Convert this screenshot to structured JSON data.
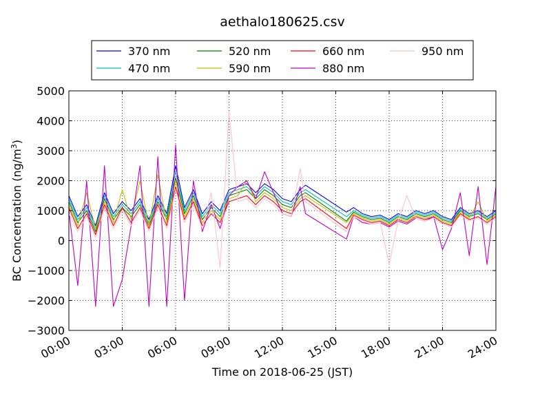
{
  "chart_data": {
    "type": "line",
    "title": "aethalo180625.csv",
    "xlabel": "Time on 2018-06-25 (JST)",
    "ylabel": "BC Concentration (ng/m³)",
    "ylabel_main": "BC Concentration (ng/m",
    "ylabel_sup": "3",
    "ylabel_end": ")",
    "xlim": [
      "00:00",
      "24:00"
    ],
    "ylim": [
      -3000,
      5000
    ],
    "x_ticks": [
      "00:00",
      "03:00",
      "06:00",
      "09:00",
      "12:00",
      "15:00",
      "18:00",
      "21:00",
      "24:00"
    ],
    "y_ticks": [
      -3000,
      -2000,
      -1000,
      0,
      1000,
      2000,
      3000,
      4000,
      5000
    ],
    "y_tick_labels": [
      "−3000",
      "−2000",
      "−1000",
      "0",
      "1000",
      "2000",
      "3000",
      "4000",
      "5000"
    ],
    "grid": true,
    "legend_position": "top",
    "x_hours": [
      0.0,
      0.5,
      1.0,
      1.5,
      2.0,
      2.5,
      3.0,
      3.5,
      4.0,
      4.5,
      5.0,
      5.5,
      6.0,
      6.5,
      7.0,
      7.5,
      8.0,
      8.5,
      9.0,
      9.5,
      10.0,
      10.5,
      11.0,
      11.5,
      12.0,
      12.5,
      13.0,
      13.3,
      15.6,
      16.0,
      16.5,
      17.0,
      17.5,
      18.0,
      18.5,
      19.0,
      19.5,
      20.0,
      20.5,
      21.0,
      21.5,
      22.0,
      22.5,
      23.0,
      23.5,
      24.0
    ],
    "series": [
      {
        "name": "370 nm",
        "color": "#0000ff",
        "values": [
          1500,
          800,
          1200,
          500,
          1600,
          900,
          1300,
          1000,
          1400,
          700,
          1500,
          900,
          2500,
          1100,
          1700,
          900,
          1300,
          1000,
          1700,
          1800,
          1900,
          1600,
          1900,
          1700,
          1400,
          1300,
          1700,
          1850,
          950,
          1100,
          900,
          800,
          850,
          700,
          900,
          800,
          1000,
          900,
          1000,
          800,
          700,
          1100,
          900,
          1000,
          800,
          1000
        ]
      },
      {
        "name": "470 nm",
        "color": "#00bfbf",
        "values": [
          1400,
          700,
          1100,
          400,
          1500,
          800,
          1200,
          900,
          1300,
          600,
          1400,
          800,
          2300,
          1000,
          1600,
          800,
          1200,
          900,
          1600,
          1700,
          1800,
          1500,
          1800,
          1600,
          1300,
          1200,
          1600,
          1700,
          800,
          1000,
          850,
          750,
          800,
          650,
          850,
          750,
          950,
          850,
          950,
          750,
          650,
          1050,
          850,
          950,
          750,
          950
        ]
      },
      {
        "name": "520 nm",
        "color": "#008000",
        "values": [
          1300,
          600,
          1000,
          300,
          1400,
          700,
          1100,
          800,
          1200,
          500,
          1300,
          700,
          2100,
          900,
          1500,
          700,
          1100,
          800,
          1500,
          1600,
          1700,
          1400,
          1700,
          1500,
          1200,
          1100,
          1500,
          1600,
          650,
          950,
          800,
          700,
          750,
          600,
          800,
          700,
          900,
          800,
          900,
          700,
          600,
          1000,
          800,
          900,
          700,
          900
        ]
      },
      {
        "name": "590 nm",
        "color": "#bfbf00",
        "values": [
          1200,
          500,
          1600,
          400,
          1300,
          600,
          1700,
          700,
          2000,
          500,
          2200,
          600,
          2000,
          800,
          1400,
          600,
          1000,
          700,
          1400,
          1500,
          2000,
          1300,
          1600,
          1400,
          1100,
          1000,
          1400,
          1500,
          600,
          900,
          750,
          650,
          700,
          550,
          750,
          650,
          850,
          750,
          850,
          650,
          550,
          950,
          750,
          1300,
          650,
          850
        ]
      },
      {
        "name": "660 nm",
        "color": "#ff0000",
        "values": [
          1100,
          400,
          900,
          200,
          1200,
          500,
          1100,
          600,
          1100,
          400,
          1200,
          500,
          1800,
          700,
          1300,
          500,
          900,
          600,
          1300,
          1400,
          1500,
          1200,
          1500,
          1300,
          1000,
          900,
          1300,
          1400,
          400,
          850,
          700,
          600,
          650,
          500,
          700,
          600,
          800,
          700,
          800,
          600,
          500,
          900,
          700,
          800,
          600,
          800
        ]
      },
      {
        "name": "880 nm",
        "color": "#bf00bf",
        "values": [
          1000,
          -1500,
          2000,
          -2200,
          2500,
          -2200,
          -1300,
          500,
          2500,
          -2200,
          2800,
          -2200,
          3200,
          -2000,
          2000,
          300,
          1200,
          400,
          1500,
          1800,
          2000,
          1400,
          2300,
          1600,
          900,
          800,
          1800,
          900,
          50,
          800,
          600,
          550,
          600,
          450,
          650,
          550,
          750,
          650,
          800,
          -300,
          400,
          1600,
          -500,
          1800,
          -800,
          1800
        ]
      },
      {
        "name": "950 nm",
        "color": "#ffc0cb",
        "values": [
          900,
          300,
          800,
          100,
          1100,
          400,
          1000,
          500,
          1000,
          300,
          1100,
          400,
          1700,
          600,
          1200,
          400,
          1600,
          -900,
          4300,
          1300,
          1400,
          1100,
          1400,
          1200,
          900,
          800,
          2400,
          1300,
          300,
          800,
          650,
          550,
          600,
          -800,
          650,
          1500,
          750,
          650,
          750,
          550,
          450,
          850,
          650,
          750,
          550,
          750
        ]
      }
    ]
  }
}
